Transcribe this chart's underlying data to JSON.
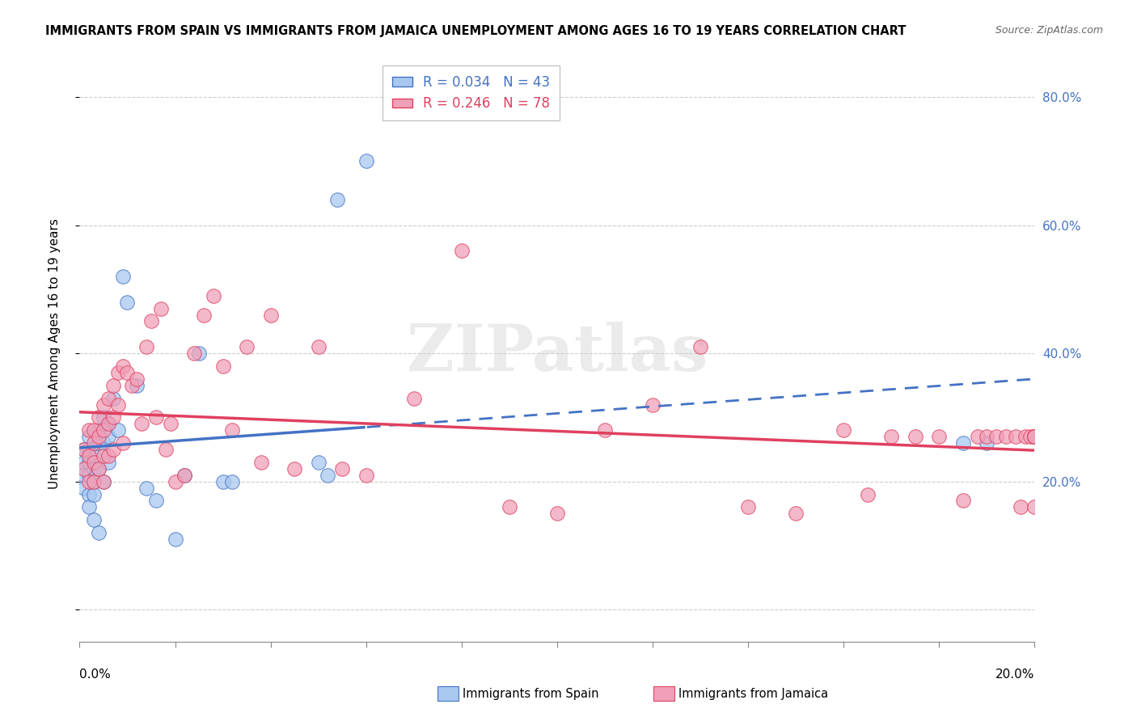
{
  "title": "IMMIGRANTS FROM SPAIN VS IMMIGRANTS FROM JAMAICA UNEMPLOYMENT AMONG AGES 16 TO 19 YEARS CORRELATION CHART",
  "source": "Source: ZipAtlas.com",
  "ylabel": "Unemployment Among Ages 16 to 19 years",
  "xlim": [
    0.0,
    0.2
  ],
  "ylim": [
    -0.05,
    0.85
  ],
  "spain_R": 0.034,
  "spain_N": 43,
  "jamaica_R": 0.246,
  "jamaica_N": 78,
  "spain_color": "#A8C8F0",
  "jamaica_color": "#F0A0B8",
  "spain_line_color": "#4472C4",
  "jamaica_line_color": "#E04060",
  "watermark": "ZIPatlas",
  "background_color": "#FFFFFF",
  "ytick_values": [
    0.0,
    0.2,
    0.4,
    0.6,
    0.8
  ],
  "ytick_labels": [
    "0.0%",
    "20.0%",
    "40.0%",
    "60.0%",
    "80.0%"
  ],
  "spain_x": [
    0.001,
    0.001,
    0.001,
    0.001,
    0.002,
    0.002,
    0.002,
    0.002,
    0.002,
    0.002,
    0.003,
    0.003,
    0.003,
    0.003,
    0.003,
    0.004,
    0.004,
    0.004,
    0.004,
    0.005,
    0.005,
    0.005,
    0.006,
    0.006,
    0.006,
    0.007,
    0.008,
    0.009,
    0.01,
    0.012,
    0.014,
    0.016,
    0.02,
    0.022,
    0.025,
    0.03,
    0.032,
    0.05,
    0.052,
    0.054,
    0.06,
    0.185,
    0.19
  ],
  "spain_y": [
    0.25,
    0.23,
    0.21,
    0.19,
    0.27,
    0.25,
    0.23,
    0.21,
    0.18,
    0.16,
    0.24,
    0.22,
    0.2,
    0.18,
    0.14,
    0.28,
    0.26,
    0.22,
    0.12,
    0.3,
    0.26,
    0.2,
    0.29,
    0.27,
    0.23,
    0.33,
    0.28,
    0.52,
    0.48,
    0.35,
    0.19,
    0.17,
    0.11,
    0.21,
    0.4,
    0.2,
    0.2,
    0.23,
    0.21,
    0.64,
    0.7,
    0.26,
    0.26
  ],
  "jamaica_x": [
    0.001,
    0.001,
    0.002,
    0.002,
    0.002,
    0.003,
    0.003,
    0.003,
    0.003,
    0.004,
    0.004,
    0.004,
    0.005,
    0.005,
    0.005,
    0.005,
    0.006,
    0.006,
    0.006,
    0.007,
    0.007,
    0.007,
    0.008,
    0.008,
    0.009,
    0.009,
    0.01,
    0.011,
    0.012,
    0.013,
    0.014,
    0.015,
    0.016,
    0.017,
    0.018,
    0.019,
    0.02,
    0.022,
    0.024,
    0.026,
    0.028,
    0.03,
    0.032,
    0.035,
    0.038,
    0.04,
    0.045,
    0.05,
    0.055,
    0.06,
    0.07,
    0.08,
    0.09,
    0.1,
    0.11,
    0.12,
    0.13,
    0.14,
    0.15,
    0.16,
    0.165,
    0.17,
    0.175,
    0.18,
    0.185,
    0.188,
    0.19,
    0.192,
    0.194,
    0.196,
    0.197,
    0.198,
    0.199,
    0.2,
    0.2,
    0.2,
    0.2,
    0.2
  ],
  "jamaica_y": [
    0.25,
    0.22,
    0.28,
    0.24,
    0.2,
    0.28,
    0.26,
    0.23,
    0.2,
    0.3,
    0.27,
    0.22,
    0.32,
    0.28,
    0.24,
    0.2,
    0.33,
    0.29,
    0.24,
    0.35,
    0.3,
    0.25,
    0.37,
    0.32,
    0.38,
    0.26,
    0.37,
    0.35,
    0.36,
    0.29,
    0.41,
    0.45,
    0.3,
    0.47,
    0.25,
    0.29,
    0.2,
    0.21,
    0.4,
    0.46,
    0.49,
    0.38,
    0.28,
    0.41,
    0.23,
    0.46,
    0.22,
    0.41,
    0.22,
    0.21,
    0.33,
    0.56,
    0.16,
    0.15,
    0.28,
    0.32,
    0.41,
    0.16,
    0.15,
    0.28,
    0.18,
    0.27,
    0.27,
    0.27,
    0.17,
    0.27,
    0.27,
    0.27,
    0.27,
    0.27,
    0.16,
    0.27,
    0.27,
    0.27,
    0.27,
    0.27,
    0.16,
    0.27
  ]
}
